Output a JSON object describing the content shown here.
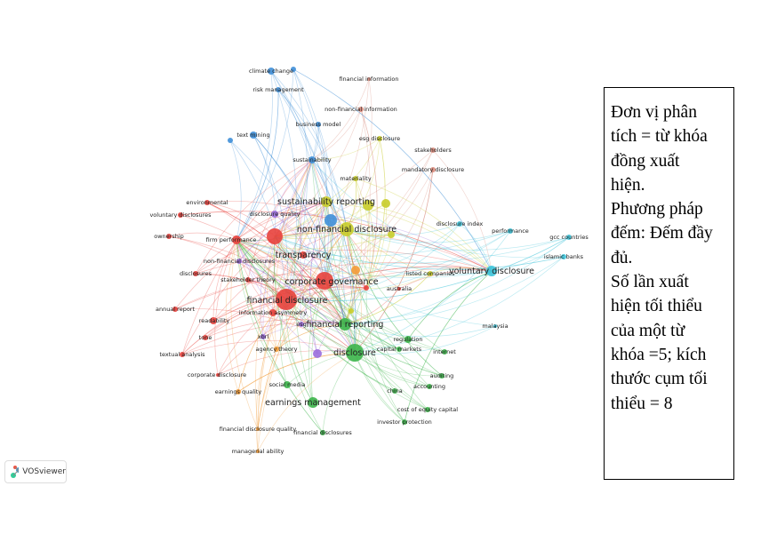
{
  "network": {
    "nodes": [
      {
        "label": "firm performance"
      },
      {
        "label": "corporate governance"
      },
      {
        "label": "financial disclosure"
      },
      {
        "label": "readability"
      },
      {
        "label": "tone"
      },
      {
        "label": "annual report"
      },
      {
        "label": "textual analysis"
      },
      {
        "label": "corporate disclosure"
      },
      {
        "label": "disclosures"
      },
      {
        "label": "ownership"
      },
      {
        "label": "voluntary disclosures"
      },
      {
        "label": "environmental"
      },
      {
        "label": "stakeholder theory"
      },
      {
        "label": "transparency"
      },
      {
        "label": "information asymmetry"
      },
      {
        "label": "australia"
      },
      {
        "label": "disclosure"
      },
      {
        "label": "financial reporting"
      },
      {
        "label": "earnings management"
      },
      {
        "label": "regulation"
      },
      {
        "label": "capital markets"
      },
      {
        "label": "internet"
      },
      {
        "label": "auditing"
      },
      {
        "label": "accounting"
      },
      {
        "label": "china"
      },
      {
        "label": "cost of equity capital"
      },
      {
        "label": "investor protection"
      },
      {
        "label": "financial disclosures"
      },
      {
        "label": "social media"
      },
      {
        "label": "non-financial disclosure"
      },
      {
        "label": "sustainability reporting"
      },
      {
        "label": "materiality"
      },
      {
        "label": "esg disclosure"
      },
      {
        "label": "listed companies"
      },
      {
        "label": "voluntary disclosure"
      },
      {
        "label": "disclosure index"
      },
      {
        "label": "performance"
      },
      {
        "label": "gcc countries"
      },
      {
        "label": "islamic banks"
      },
      {
        "label": "malaysia"
      },
      {
        "label": "climate change"
      },
      {
        "label": "risk management"
      },
      {
        "label": "text mining"
      },
      {
        "label": "business model"
      },
      {
        "label": "sustainability"
      },
      {
        "label": "financial information"
      },
      {
        "label": "non-financial information"
      },
      {
        "label": "stakeholders"
      },
      {
        "label": "mandatory disclosure"
      },
      {
        "label": "disclosure quality"
      },
      {
        "label": "non-financial disclosures"
      },
      {
        "label": "xbrl"
      },
      {
        "label": "esg"
      },
      {
        "label": "agency theory"
      },
      {
        "label": "earnings quality"
      },
      {
        "label": "financial disclosure quality"
      },
      {
        "label": "managerial ability"
      }
    ]
  },
  "logo": {
    "label": "VOSviewer"
  },
  "text_box": {
    "lines": [
      "Đơn vị phân",
      "tích = từ khóa",
      "đồng xuất",
      "hiện.",
      "Phương pháp",
      "đếm: Đếm đầy",
      "đủ.",
      "Số lần xuất",
      "hiện tối thiểu",
      "của một từ",
      "khóa =5; kích",
      "thước cụm tối",
      "thiểu = 8"
    ]
  }
}
